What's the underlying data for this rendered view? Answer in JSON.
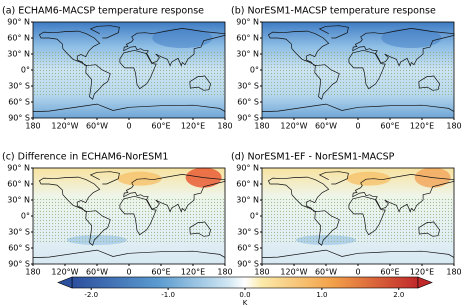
{
  "map_axes": {
    "lonlim": [
      -180,
      180
    ],
    "latlim": [
      -90,
      90
    ],
    "lonticks": [
      {
        "value": -180,
        "label": "180"
      },
      {
        "value": -120,
        "label": "120°W"
      },
      {
        "value": -60,
        "label": "60°W"
      },
      0,
      {
        "value": 60,
        "label": "60°E"
      },
      {
        "value": 120,
        "label": "120°E"
      },
      {
        "value": 180,
        "label": "180"
      }
    ],
    "latticks": [
      {
        "value": 90,
        "label": "90° N"
      },
      {
        "value": 60,
        "label": "60° N"
      },
      {
        "value": 30,
        "label": "30° N"
      },
      {
        "value": 0,
        "label": "0°"
      },
      {
        "value": -30,
        "label": "30° S"
      },
      {
        "value": -60,
        "label": "60° S"
      },
      {
        "value": -90,
        "label": "90° S"
      }
    ]
  },
  "panels": [
    {
      "title": "(a) ECHAM6-MACSP temperature response"
    },
    {
      "title": "(b) NorESM1-MACSP temperature response"
    },
    {
      "title": "(c) Difference in ECHAM6-NorESM1"
    },
    {
      "title": "(d) NorESM1-EF - NorESM1-MACSP"
    }
  ],
  "colorbar": {
    "label": "K",
    "lim": [
      -2.25,
      2.25
    ],
    "ticks": [
      {
        "value": -2,
        "label": "-2.0"
      },
      {
        "value": -1,
        "label": "-1.0"
      },
      {
        "value": 0,
        "label": "0.0"
      },
      {
        "value": 1,
        "label": "1.0"
      },
      {
        "value": 2,
        "label": "2.0"
      }
    ]
  }
}
